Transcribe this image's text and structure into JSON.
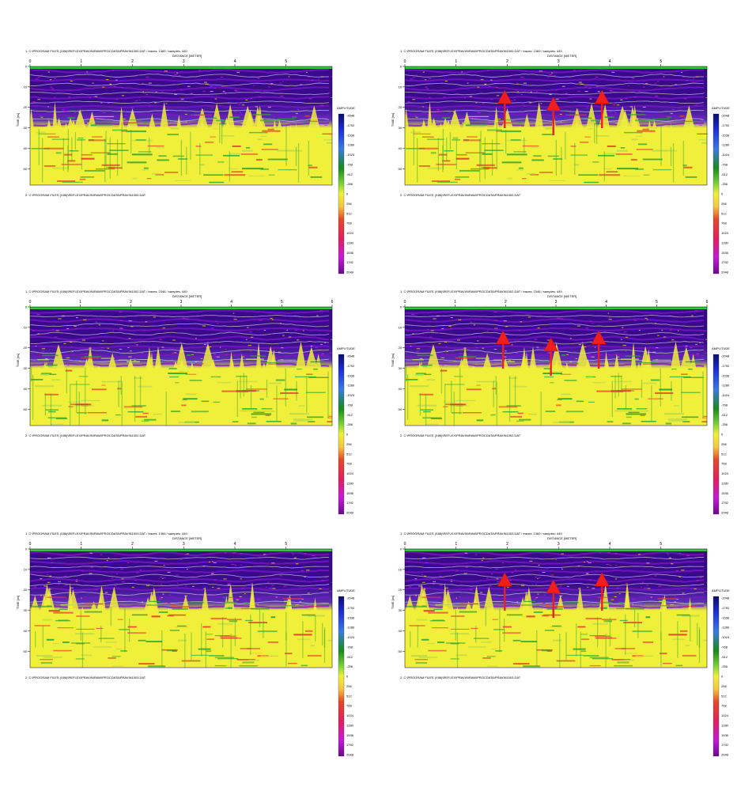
{
  "panels": [
    {
      "header": "1. C:\\PROGRAM FILES (X86)\\REFLEX\\PRAVIN\\RAW\\PROCDATA\\PRAVIN1000.DAT  /  traces: 1369  /  samples: 449",
      "footer": "2. C:\\PROGRAM FILES (X86)\\REFLEX\\PRAVIN\\RAW\\PROCDATA\\PRAVIN1000.DAT",
      "arrows": []
    },
    {
      "header": "1. C:\\PROGRAM FILES (X86)\\REFLEX\\PRAVIN\\RAW\\PROCDATA\\PRAVIN1000.DAT  /  traces: 1369  /  samples: 449",
      "footer": "2. C:\\PROGRAM FILES (X86)\\REFLEX\\PRAVIN\\RAW\\PROCDATA\\PRAVIN1000.DAT",
      "arrows": [
        1.95,
        2.9,
        3.85
      ]
    },
    {
      "header": "1. C:\\PROGRAM FILES (X86)\\REFLEX\\PRAVIN\\RAW\\PROCDATA\\PRAVIN1002.DAT  /  traces: 2346  /  samples: 449",
      "footer": "2. C:\\PROGRAM FILES (X86)\\REFLEX\\PRAVIN\\RAW\\PROCDATA\\PRAVIN1002.DAT",
      "arrows": []
    },
    {
      "header": "1. C:\\PROGRAM FILES (X86)\\REFLEX\\PRAVIN\\RAW\\PROCDATA\\PRAVIN1002.DAT  /  traces: 2346  /  samples: 449",
      "footer": "2. C:\\PROGRAM FILES (X86)\\REFLEX\\PRAVIN\\RAW\\PROCDATA\\PRAVIN1002.DAT",
      "arrows": [
        1.95,
        2.9,
        3.85
      ]
    },
    {
      "header": "1. C:\\PROGRAM FILES (X86)\\REFLEX\\PRAVIN\\RAW\\PROCDATA\\PRAVIN1003.DAT  /  traces: 1369  /  samples: 449",
      "footer": "2. C:\\PROGRAM FILES (X86)\\REFLEX\\PRAVIN\\RAW\\PROCDATA\\PRAVIN1003.DAT",
      "arrows": []
    },
    {
      "header": "1. C:\\PROGRAM FILES (X86)\\REFLEX\\PRAVIN\\RAW\\PROCDATA\\PRAVIN1003.DAT  /  traces: 1369  /  samples: 449",
      "footer": "2. C:\\PROGRAM FILES (X86)\\REFLEX\\PRAVIN\\RAW\\PROCDATA\\PRAVIN1003.DAT",
      "arrows": [
        1.95,
        2.9,
        3.85
      ]
    }
  ],
  "chart_data": [
    {
      "type": "heatmap",
      "xlabel": "DISTANCE [METER]",
      "ylabel": "TIME [ns]",
      "colorbar_title": "AMPLITUDE",
      "x_ticks": [
        "0",
        "1",
        "2",
        "3",
        "4",
        "5"
      ],
      "y_ticks": [
        "0",
        "10",
        "20",
        "30",
        "40",
        "50"
      ],
      "xlim": [
        0,
        5.9
      ],
      "ylim": [
        0,
        58
      ],
      "colorbar_ticks": [
        "-2048",
        "-1792",
        "-1536",
        "-1280",
        "-1024",
        "-768",
        "-512",
        "-256",
        "0",
        "256",
        "512",
        "768",
        "1024",
        "1280",
        "1536",
        "1792",
        "2048"
      ],
      "annotations": []
    },
    {
      "type": "heatmap",
      "xlabel": "DISTANCE [METER]",
      "ylabel": "TIME [ns]",
      "colorbar_title": "AMPLITUDE",
      "x_ticks": [
        "0",
        "1",
        "2",
        "3",
        "4",
        "5"
      ],
      "y_ticks": [
        "0",
        "10",
        "20",
        "30",
        "40",
        "50"
      ],
      "xlim": [
        0,
        5.9
      ],
      "ylim": [
        0,
        58
      ],
      "colorbar_ticks": [
        "-2048",
        "-1792",
        "-1536",
        "-1280",
        "-1024",
        "-768",
        "-512",
        "-256",
        "0",
        "256",
        "512",
        "768",
        "1024",
        "1280",
        "1536",
        "1792",
        "2048"
      ],
      "annotations": [
        {
          "type": "arrow",
          "x": 1.95
        },
        {
          "type": "arrow",
          "x": 2.9
        },
        {
          "type": "arrow",
          "x": 3.85
        }
      ]
    },
    {
      "type": "heatmap",
      "xlabel": "DISTANCE [METER]",
      "ylabel": "TIME [ns]",
      "colorbar_title": "AMPLITUDE",
      "x_ticks": [
        "0",
        "1",
        "2",
        "3",
        "4",
        "5",
        "6"
      ],
      "y_ticks": [
        "0",
        "10",
        "20",
        "30",
        "40",
        "50"
      ],
      "xlim": [
        0,
        6
      ],
      "ylim": [
        0,
        58
      ],
      "colorbar_ticks": [
        "-2048",
        "-1792",
        "-1536",
        "-1280",
        "-1024",
        "-768",
        "-512",
        "-256",
        "0",
        "256",
        "512",
        "768",
        "1024",
        "1280",
        "1536",
        "1792",
        "2048"
      ],
      "annotations": []
    },
    {
      "type": "heatmap",
      "xlabel": "DISTANCE [METER]",
      "ylabel": "TIME [ns]",
      "colorbar_title": "AMPLITUDE",
      "x_ticks": [
        "0",
        "1",
        "2",
        "3",
        "4",
        "5",
        "6"
      ],
      "y_ticks": [
        "0",
        "10",
        "20",
        "30",
        "40",
        "50"
      ],
      "xlim": [
        0,
        6
      ],
      "ylim": [
        0,
        58
      ],
      "colorbar_ticks": [
        "-2048",
        "-1792",
        "-1536",
        "-1280",
        "-1024",
        "-768",
        "-512",
        "-256",
        "0",
        "256",
        "512",
        "768",
        "1024",
        "1280",
        "1536",
        "1792",
        "2048"
      ],
      "annotations": [
        {
          "type": "arrow",
          "x": 1.95
        },
        {
          "type": "arrow",
          "x": 2.9
        },
        {
          "type": "arrow",
          "x": 3.85
        }
      ]
    },
    {
      "type": "heatmap",
      "xlabel": "DISTANCE [METER]",
      "ylabel": "TIME [ns]",
      "colorbar_title": "AMPLITUDE",
      "x_ticks": [
        "0",
        "1",
        "2",
        "3",
        "4",
        "5"
      ],
      "y_ticks": [
        "0",
        "10",
        "20",
        "30",
        "40",
        "50"
      ],
      "xlim": [
        0,
        5.9
      ],
      "ylim": [
        0,
        58
      ],
      "colorbar_ticks": [
        "-2048",
        "-1792",
        "-1536",
        "-1280",
        "-1024",
        "-768",
        "-512",
        "-256",
        "0",
        "256",
        "512",
        "768",
        "1024",
        "1280",
        "1536",
        "1792",
        "2048"
      ],
      "annotations": []
    },
    {
      "type": "heatmap",
      "xlabel": "DISTANCE [METER]",
      "ylabel": "TIME [ns]",
      "colorbar_title": "AMPLITUDE",
      "x_ticks": [
        "0",
        "1",
        "2",
        "3",
        "4",
        "5"
      ],
      "y_ticks": [
        "0",
        "10",
        "20",
        "30",
        "40",
        "50"
      ],
      "xlim": [
        0,
        5.9
      ],
      "ylim": [
        0,
        58
      ],
      "colorbar_ticks": [
        "-2048",
        "-1792",
        "-1536",
        "-1280",
        "-1024",
        "-768",
        "-512",
        "-256",
        "0",
        "256",
        "512",
        "768",
        "1024",
        "1280",
        "1536",
        "1792",
        "2048"
      ],
      "annotations": [
        {
          "type": "arrow",
          "x": 1.95
        },
        {
          "type": "arrow",
          "x": 2.9
        },
        {
          "type": "arrow",
          "x": 3.85
        }
      ]
    }
  ],
  "colors": {
    "deep_purple": "#3a0a8c",
    "violet": "#7a17c9",
    "magenta": "#c21bd6",
    "yellow": "#f0ef3a",
    "green": "#2aa62a",
    "red": "#e23b24",
    "arrow_red": "#ee1e1e"
  }
}
